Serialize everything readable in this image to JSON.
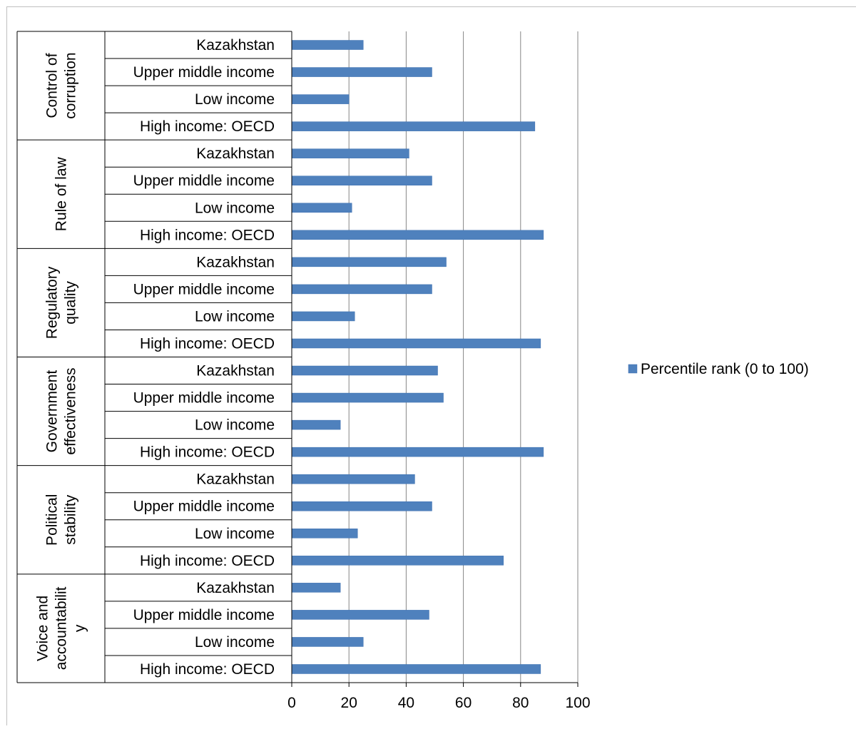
{
  "chart_data": {
    "type": "bar",
    "orientation": "horizontal",
    "groups": [
      {
        "label_lines": [
          "Control of",
          "corruption"
        ],
        "categories": [
          "Kazakhstan",
          "Upper middle income",
          "Low income",
          "High income: OECD"
        ],
        "values": [
          25,
          49,
          20,
          85
        ]
      },
      {
        "label_lines": [
          "Rule of law"
        ],
        "categories": [
          "Kazakhstan",
          "Upper middle income",
          "Low income",
          "High income: OECD"
        ],
        "values": [
          41,
          49,
          21,
          88
        ]
      },
      {
        "label_lines": [
          "Regulatory",
          "quality"
        ],
        "categories": [
          "Kazakhstan",
          "Upper middle income",
          "Low income",
          "High income: OECD"
        ],
        "values": [
          54,
          49,
          22,
          87
        ]
      },
      {
        "label_lines": [
          "Government",
          "effectiveness"
        ],
        "categories": [
          "Kazakhstan",
          "Upper middle income",
          "Low income",
          "High income: OECD"
        ],
        "values": [
          51,
          53,
          17,
          88
        ]
      },
      {
        "label_lines": [
          "Political",
          "stability"
        ],
        "categories": [
          "Kazakhstan",
          "Upper middle income",
          "Low income",
          "High income: OECD"
        ],
        "values": [
          43,
          49,
          23,
          74
        ]
      },
      {
        "label_lines": [
          "Voice and",
          "accountabilit",
          "y"
        ],
        "categories": [
          "Kazakhstan",
          "Upper middle income",
          "Low income",
          "High income: OECD"
        ],
        "values": [
          17,
          48,
          25,
          87
        ]
      }
    ],
    "xlim": [
      0,
      100
    ],
    "xticks": [
      "0",
      "20",
      "40",
      "60",
      "80",
      "100"
    ],
    "grid": true,
    "legend": {
      "position": "right",
      "label": "Percentile rank (0 to 100)"
    },
    "colors": {
      "bar": "#4F81BD",
      "bar_edge": "#3C6FB0",
      "grid": "#868686",
      "frame": "#BFBFBF"
    }
  }
}
